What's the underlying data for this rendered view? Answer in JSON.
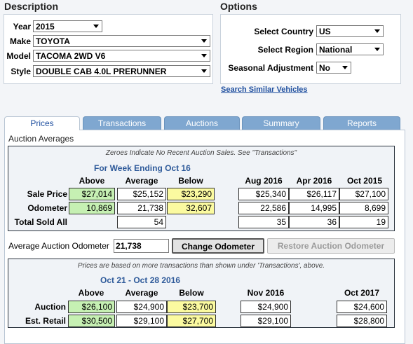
{
  "description": {
    "title": "Description",
    "fields": [
      {
        "label": "Year",
        "value": "2015"
      },
      {
        "label": "Make",
        "value": "TOYOTA"
      },
      {
        "label": "Model",
        "value": "TACOMA 2WD V6"
      },
      {
        "label": "Style",
        "value": "DOUBLE CAB 4.0L PRERUNNER"
      }
    ]
  },
  "options": {
    "title": "Options",
    "fields": [
      {
        "label": "Select Country",
        "value": "US"
      },
      {
        "label": "Select Region",
        "value": "National"
      },
      {
        "label": "Seasonal Adjustment",
        "value": "No"
      }
    ],
    "search_link": "Search Similar Vehicles"
  },
  "tabs": [
    "Prices",
    "Transactions",
    "Auctions",
    "Summary",
    "Reports"
  ],
  "auction_averages": {
    "title": "Auction Averages",
    "note": "Zeroes Indicate No Recent Auction Sales. See \"Transactions\"",
    "week_label": "For Week Ending Oct 16",
    "col_headers": [
      "Above",
      "Average",
      "Below",
      "Aug 2016",
      "Apr 2016",
      "Oct 2015"
    ],
    "rows": [
      {
        "label": "Sale Price",
        "values": [
          "$27,014",
          "$25,152",
          "$23,290",
          "$25,340",
          "$26,117",
          "$27,100"
        ]
      },
      {
        "label": "Odometer",
        "values": [
          "10,869",
          "21,738",
          "32,607",
          "22,586",
          "14,995",
          "8,699"
        ]
      },
      {
        "label": "Total Sold All",
        "values": [
          "",
          "54",
          "",
          "35",
          "36",
          "19"
        ]
      }
    ]
  },
  "odometer": {
    "label": "Average Auction Odometer",
    "value": "21,738",
    "change_button": "Change Odometer",
    "restore_button": "Restore Auction Odometer"
  },
  "projections": {
    "note": "Prices are based on more transactions than shown under 'Transactions', above.",
    "date_range": "Oct 21 - Oct 28 2016",
    "col_headers": [
      "Above",
      "Average",
      "Below",
      "Nov 2016",
      "Oct 2017"
    ],
    "rows": [
      {
        "label": "Auction",
        "values": [
          "$26,100",
          "$24,900",
          "$23,700",
          "$24,900",
          "$24,600"
        ]
      },
      {
        "label": "Est. Retail",
        "values": [
          "$30,500",
          "$29,100",
          "$27,700",
          "$29,100",
          "$28,800"
        ]
      }
    ]
  },
  "colors": {
    "above_fill": "#c6f0b3",
    "below_fill": "#fbfaa0",
    "tab_blue": "#7fa7d0",
    "header_blue": "#2e5a9a"
  }
}
